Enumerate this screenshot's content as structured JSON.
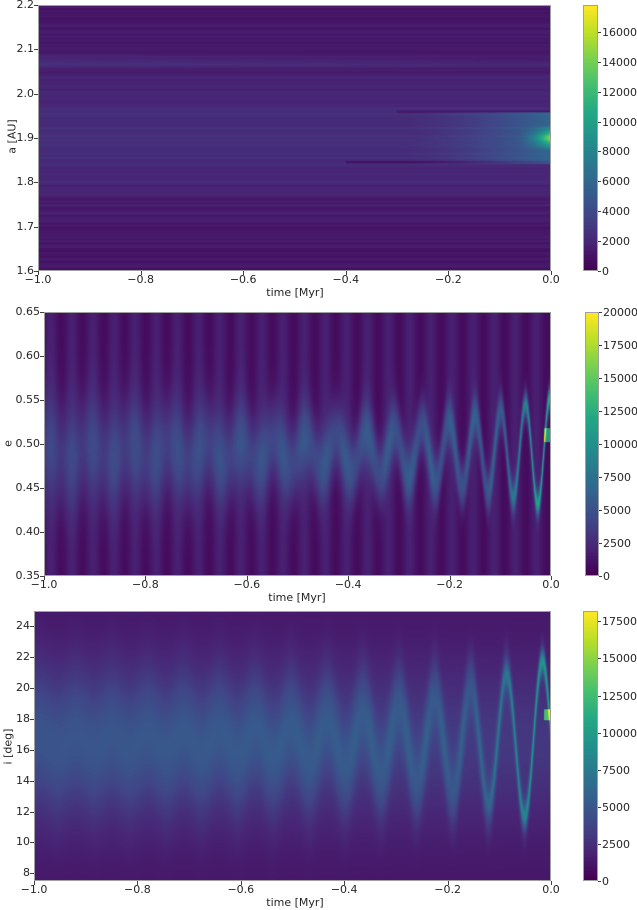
{
  "chart_data": [
    {
      "type": "heatmap",
      "title": "",
      "xlabel": "time [Myr]",
      "ylabel": "a [AU]",
      "xlim": [
        -1.0,
        0.0
      ],
      "ylim": [
        1.6,
        2.2
      ],
      "xticks": [
        "−1.0",
        "−0.8",
        "−0.6",
        "−0.4",
        "−0.2",
        "0.0"
      ],
      "yticks": [
        "1.6",
        "1.7",
        "1.8",
        "1.9",
        "2.0",
        "2.1",
        "2.2"
      ],
      "colormap": "viridis",
      "colorbar": {
        "min": 0,
        "max": 17800,
        "ticks": [
          "0",
          "2000",
          "4000",
          "6000",
          "8000",
          "10000",
          "12000",
          "14000",
          "16000"
        ]
      },
      "features": {
        "band_center": 1.9,
        "band_halfwidth": 0.06,
        "secondary_band": 2.07,
        "peak_location": {
          "time": 0.0,
          "a": 1.9,
          "value": 17800
        },
        "description": "Horizontal banded distribution concentrated near 1.84–1.96 AU, brightening sharply toward t=0"
      }
    },
    {
      "type": "heatmap",
      "title": "",
      "xlabel": "time [Myr]",
      "ylabel": "e",
      "xlim": [
        -1.0,
        0.0
      ],
      "ylim": [
        0.35,
        0.65
      ],
      "xticks": [
        "−1.0",
        "−0.8",
        "−0.6",
        "−0.4",
        "−0.2",
        "0.0"
      ],
      "yticks": [
        "0.35",
        "0.40",
        "0.45",
        "0.50",
        "0.55",
        "0.60",
        "0.65"
      ],
      "colormap": "viridis",
      "colorbar": {
        "min": 0,
        "max": 20000,
        "ticks": [
          "0",
          "2500",
          "5000",
          "7500",
          "10000",
          "12500",
          "15000",
          "17500",
          "20000"
        ]
      },
      "features": {
        "center": 0.49,
        "peak_location": {
          "time": 0.0,
          "e": 0.51,
          "value": 20000
        },
        "description": "Oscillating eccentricity distribution narrowing and brightening toward t=0, swing between ~0.46 and ~0.56 near -0.1 Myr"
      }
    },
    {
      "type": "heatmap",
      "title": "",
      "xlabel": "time [Myr]",
      "ylabel": "i [deg]",
      "xlim": [
        -1.0,
        0.0
      ],
      "ylim": [
        7.5,
        25
      ],
      "xticks": [
        "−1.0",
        "−0.8",
        "−0.6",
        "−0.4",
        "−0.2",
        "0.0"
      ],
      "yticks": [
        "8",
        "10",
        "12",
        "14",
        "16",
        "18",
        "20",
        "22",
        "24"
      ],
      "colormap": "viridis",
      "colorbar": {
        "min": 0,
        "max": 18200,
        "ticks": [
          "0",
          "2500",
          "5000",
          "7500",
          "10000",
          "12500",
          "15000",
          "17500"
        ]
      },
      "features": {
        "center": 16.5,
        "peak_location": {
          "time": 0.0,
          "i": 18.3,
          "value": 18200
        },
        "description": "Oscillating inclination distribution (~11–22 deg) with sharp bright streaks near t=0"
      }
    }
  ]
}
